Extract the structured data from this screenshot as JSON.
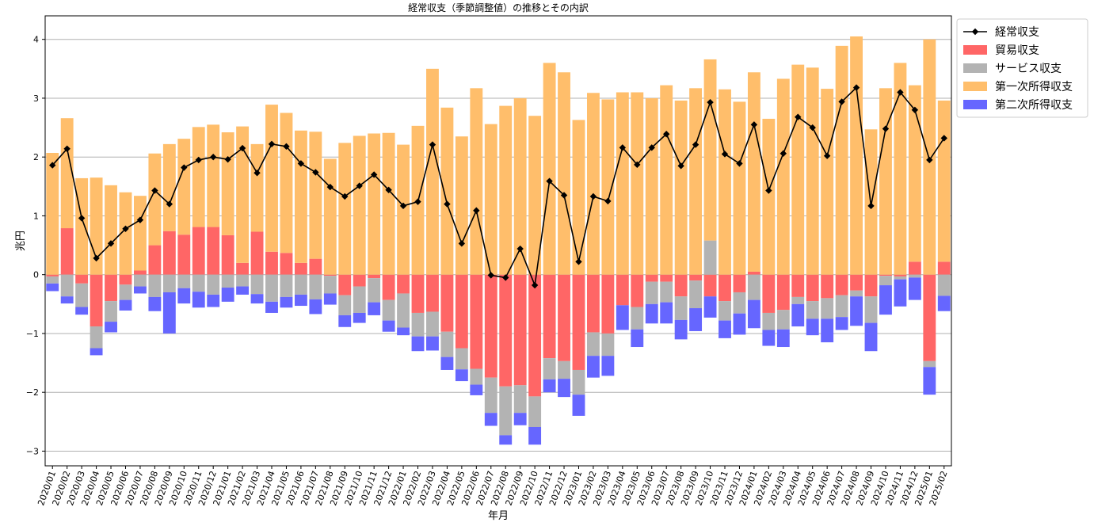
{
  "chart_data": {
    "type": "bar",
    "title": "経常収支（季節調整値）の推移とその内訳",
    "xlabel": "年月",
    "ylabel": "兆円",
    "ylim": [
      -3.25,
      4.4
    ],
    "yticks": [
      -3,
      -2,
      -1,
      0,
      1,
      2,
      3,
      4
    ],
    "grid": "horizontal",
    "legend_position": "outside-top-right",
    "stacking": "positive values stack upward from 0, negative values stack downward from 0",
    "categories": [
      "2020/01",
      "2020/02",
      "2020/03",
      "2020/04",
      "2020/05",
      "2020/06",
      "2020/07",
      "2020/08",
      "2020/09",
      "2020/10",
      "2020/11",
      "2020/12",
      "2021/01",
      "2021/02",
      "2021/03",
      "2021/04",
      "2021/05",
      "2021/06",
      "2021/07",
      "2021/08",
      "2021/09",
      "2021/10",
      "2021/11",
      "2021/12",
      "2022/01",
      "2022/02",
      "2022/03",
      "2022/04",
      "2022/05",
      "2022/06",
      "2022/07",
      "2022/08",
      "2022/09",
      "2022/10",
      "2022/11",
      "2022/12",
      "2023/01",
      "2023/02",
      "2023/03",
      "2023/04",
      "2023/05",
      "2023/06",
      "2023/07",
      "2023/08",
      "2023/09",
      "2023/10",
      "2023/11",
      "2023/12",
      "2024/01",
      "2024/02",
      "2024/03",
      "2024/04",
      "2024/05",
      "2024/06",
      "2024/07",
      "2024/08",
      "2024/09",
      "2024/10",
      "2024/11",
      "2024/12",
      "2025/01",
      "2025/02"
    ],
    "series": [
      {
        "name": "貿易収支",
        "kind": "bar",
        "color": "#ff6666",
        "values": [
          -0.03,
          0.79,
          -0.15,
          -0.88,
          -0.45,
          -0.17,
          0.07,
          0.5,
          0.74,
          0.68,
          0.81,
          0.81,
          0.67,
          0.2,
          0.73,
          0.39,
          0.37,
          0.2,
          0.27,
          -0.02,
          -0.35,
          -0.2,
          -0.06,
          -0.43,
          -0.32,
          -0.65,
          -0.63,
          -0.97,
          -1.25,
          -1.6,
          -1.75,
          -1.9,
          -1.88,
          -2.07,
          -1.42,
          -1.47,
          -1.62,
          -0.98,
          -1.0,
          -0.52,
          -0.55,
          -0.12,
          -0.12,
          -0.37,
          -0.1,
          -0.37,
          -0.45,
          -0.3,
          0.05,
          -0.65,
          -0.6,
          -0.38,
          -0.45,
          -0.4,
          -0.35,
          -0.27,
          -0.37,
          -0.02,
          -0.03,
          0.22,
          -1.47,
          0.22
        ]
      },
      {
        "name": "サービス収支",
        "kind": "bar",
        "color": "#b3b3b3",
        "values": [
          -0.12,
          -0.37,
          -0.4,
          -0.37,
          -0.35,
          -0.26,
          -0.2,
          -0.38,
          -0.3,
          -0.23,
          -0.29,
          -0.34,
          -0.22,
          -0.2,
          -0.33,
          -0.46,
          -0.38,
          -0.34,
          -0.42,
          -0.3,
          -0.34,
          -0.45,
          -0.41,
          -0.35,
          -0.58,
          -0.4,
          -0.42,
          -0.43,
          -0.36,
          -0.27,
          -0.6,
          -0.83,
          -0.47,
          -0.52,
          -0.36,
          -0.3,
          -0.42,
          -0.4,
          -0.38,
          0.0,
          -0.38,
          -0.38,
          -0.35,
          -0.4,
          -0.47,
          0.58,
          -0.33,
          -0.36,
          -0.43,
          -0.29,
          -0.33,
          -0.12,
          -0.3,
          -0.35,
          -0.37,
          -0.1,
          -0.45,
          -0.16,
          -0.05,
          -0.05,
          -0.1,
          -0.36
        ]
      },
      {
        "name": "第一次所得収支",
        "kind": "bar",
        "color": "#ffbe6b",
        "values": [
          2.07,
          1.87,
          1.64,
          1.65,
          1.52,
          1.4,
          1.27,
          1.56,
          1.48,
          1.63,
          1.7,
          1.74,
          1.75,
          2.32,
          1.49,
          2.5,
          2.38,
          2.25,
          2.16,
          1.97,
          2.24,
          2.36,
          2.4,
          2.41,
          2.21,
          2.53,
          3.5,
          2.84,
          2.35,
          3.17,
          2.56,
          2.87,
          3.0,
          2.7,
          3.6,
          3.44,
          2.63,
          3.09,
          2.98,
          3.1,
          3.1,
          3.0,
          3.22,
          2.96,
          3.17,
          3.08,
          3.15,
          2.94,
          3.39,
          2.65,
          3.33,
          3.57,
          3.52,
          3.16,
          3.89,
          4.05,
          2.47,
          3.17,
          3.6,
          3.0,
          4.0,
          2.74
        ]
      },
      {
        "name": "第二次所得収支",
        "kind": "bar",
        "color": "#6666ff",
        "values": [
          -0.13,
          -0.12,
          -0.13,
          -0.12,
          -0.18,
          -0.18,
          -0.12,
          -0.24,
          -0.7,
          -0.26,
          -0.27,
          -0.21,
          -0.24,
          -0.14,
          -0.16,
          -0.19,
          -0.18,
          -0.19,
          -0.25,
          -0.19,
          -0.2,
          -0.17,
          -0.22,
          -0.19,
          -0.13,
          -0.25,
          -0.24,
          -0.22,
          -0.2,
          -0.18,
          -0.22,
          -0.16,
          -0.21,
          -0.3,
          -0.22,
          -0.31,
          -0.36,
          -0.37,
          -0.34,
          -0.42,
          -0.3,
          -0.33,
          -0.36,
          -0.33,
          -0.39,
          -0.36,
          -0.3,
          -0.36,
          -0.48,
          -0.27,
          -0.3,
          -0.38,
          -0.28,
          -0.4,
          -0.22,
          -0.5,
          -0.48,
          -0.5,
          -0.46,
          -0.38,
          -0.47,
          -0.26
        ]
      },
      {
        "name": "経常収支",
        "kind": "line",
        "color": "#000000",
        "marker": "diamond",
        "values": [
          1.86,
          2.14,
          0.96,
          0.28,
          0.53,
          0.78,
          0.93,
          1.43,
          1.2,
          1.82,
          1.95,
          2.0,
          1.96,
          2.15,
          1.73,
          2.22,
          2.18,
          1.89,
          1.74,
          1.49,
          1.33,
          1.51,
          1.7,
          1.44,
          1.17,
          1.24,
          2.21,
          1.2,
          0.53,
          1.09,
          -0.01,
          -0.05,
          0.44,
          -0.18,
          1.59,
          1.35,
          0.22,
          1.33,
          1.25,
          2.16,
          1.87,
          2.16,
          2.39,
          1.85,
          2.21,
          2.93,
          2.05,
          1.89,
          2.55,
          1.43,
          2.06,
          2.68,
          2.5,
          2.02,
          2.94,
          3.18,
          1.17,
          2.48,
          3.1,
          2.8,
          1.95,
          2.32
        ]
      }
    ],
    "legend": [
      "経常収支",
      "貿易収支",
      "サービス収支",
      "第一次所得収支",
      "第二次所得収支"
    ]
  }
}
